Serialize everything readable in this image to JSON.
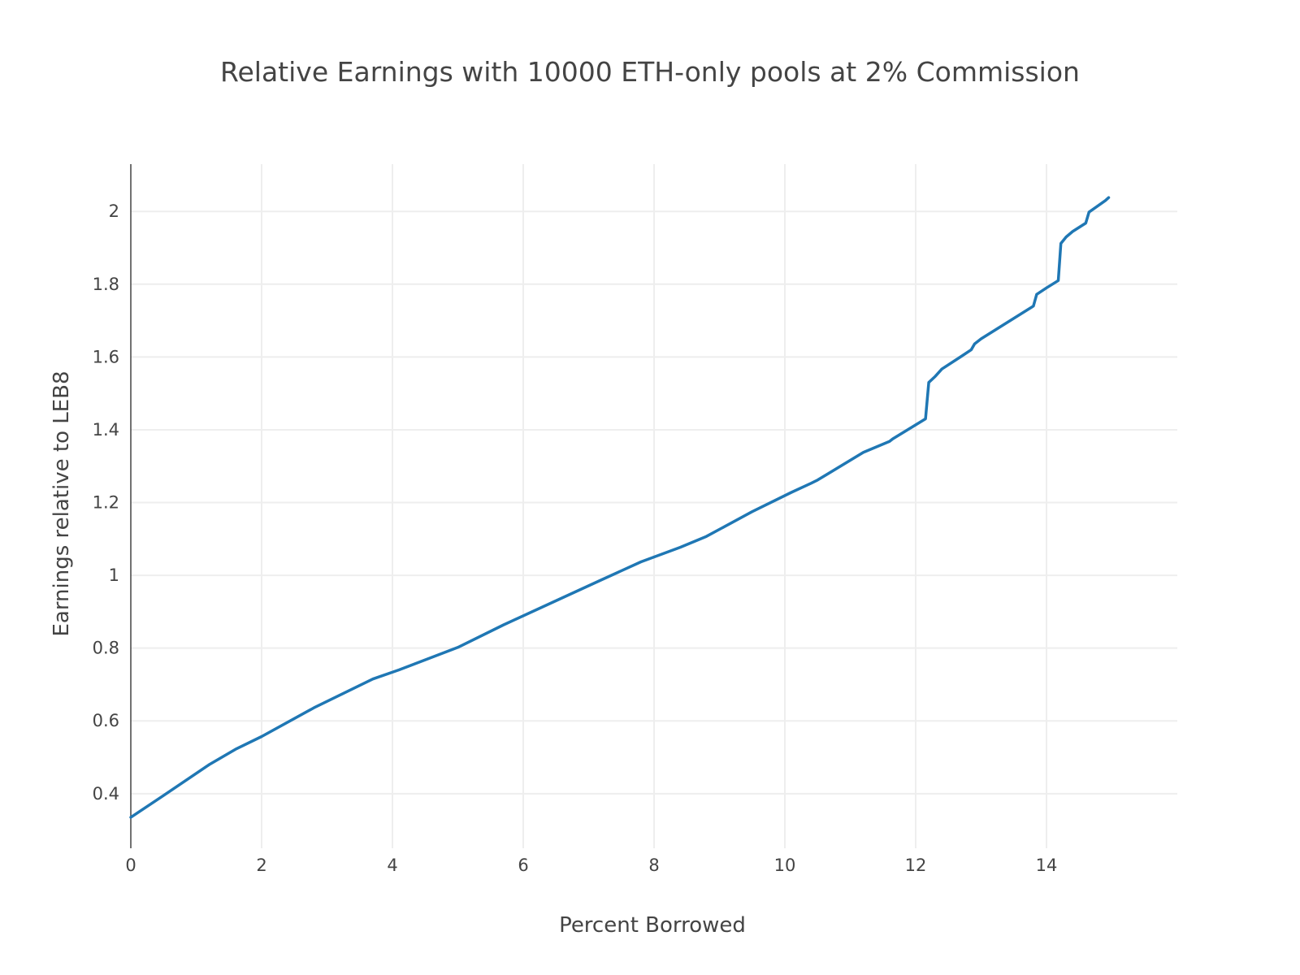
{
  "chart_data": {
    "type": "line",
    "title": "Relative Earnings with 10000 ETH-only pools at 2% Commission",
    "xlabel": "Percent Borrowed",
    "ylabel": "Earnings relative to LEB8",
    "xlim": [
      0,
      16
    ],
    "ylim": [
      0.25,
      2.13
    ],
    "xticks": [
      0,
      2,
      4,
      6,
      8,
      10,
      12,
      14
    ],
    "yticks": [
      0.4,
      0.6,
      0.8,
      1,
      1.2,
      1.4,
      1.6,
      1.8,
      2
    ],
    "grid": true,
    "legend": "none",
    "line_color": "#1f77b4",
    "series": [
      {
        "x": [
          0,
          0.5,
          1.2,
          1.6,
          2.0,
          2.8,
          3.7,
          4.1,
          5.0,
          5.7,
          6.5,
          7.2,
          7.8,
          8.4,
          8.8,
          9.5,
          10.1,
          10.4,
          10.5,
          11.2,
          11.6,
          11.65,
          12.15,
          12.2,
          12.3,
          12.4,
          12.7,
          12.85,
          12.9,
          13.0,
          13.8,
          13.85,
          14.0,
          14.18,
          14.22,
          14.3,
          14.4,
          14.6,
          14.65,
          14.9,
          14.95
        ],
        "y": [
          0.335,
          0.395,
          0.48,
          0.522,
          0.557,
          0.636,
          0.715,
          0.74,
          0.802,
          0.864,
          0.93,
          0.988,
          1.037,
          1.077,
          1.107,
          1.175,
          1.228,
          1.253,
          1.262,
          1.338,
          1.368,
          1.375,
          1.43,
          1.53,
          1.547,
          1.567,
          1.602,
          1.62,
          1.636,
          1.65,
          1.74,
          1.772,
          1.79,
          1.81,
          1.912,
          1.93,
          1.945,
          1.968,
          1.998,
          2.03,
          2.038
        ]
      }
    ]
  }
}
